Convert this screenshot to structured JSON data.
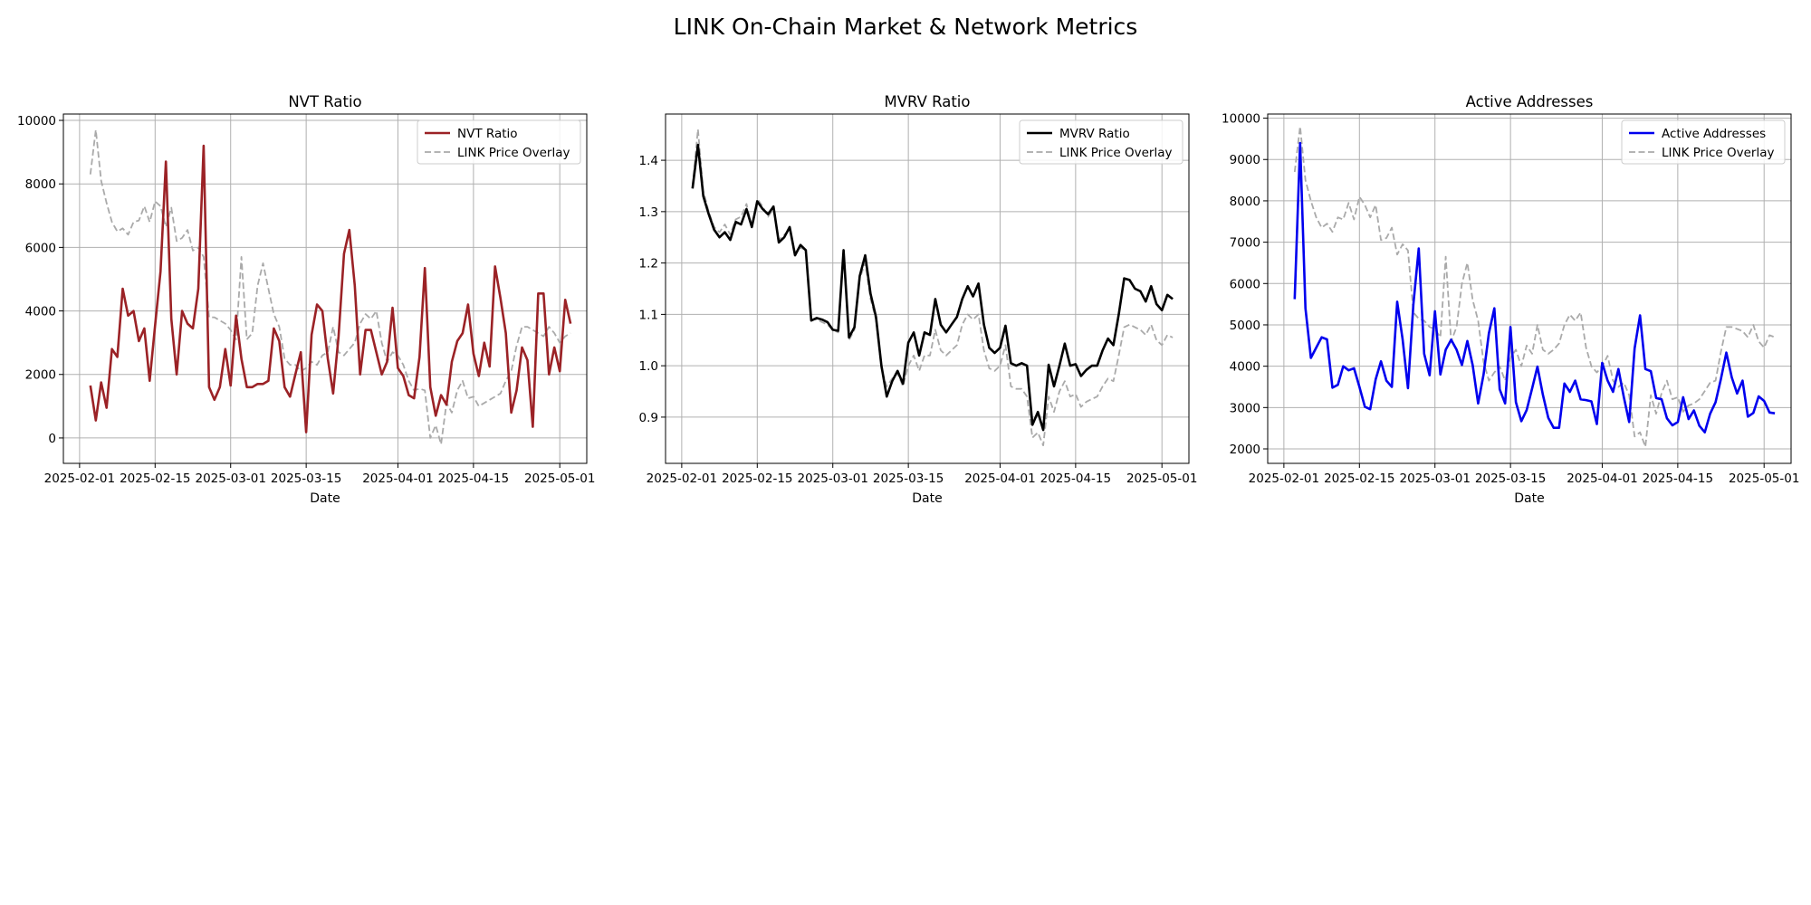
{
  "figure_title": "LINK On-Chain Market & Network Metrics",
  "chart_data": [
    {
      "type": "line",
      "title": "NVT Ratio",
      "xlabel": "Date",
      "ylabel": "",
      "x_start": "2025-02-03",
      "x_step_days": 1,
      "xlim": [
        "2025-01-29",
        "2025-05-06"
      ],
      "xticks": [
        "2025-02-01",
        "2025-02-15",
        "2025-03-01",
        "2025-03-15",
        "2025-04-01",
        "2025-04-15",
        "2025-05-01"
      ],
      "ylim": [
        -800,
        10200
      ],
      "yticks": [
        0,
        2000,
        4000,
        6000,
        8000,
        10000
      ],
      "ytick_labels": [
        "0",
        "2000",
        "4000",
        "6000",
        "8000",
        "10000"
      ],
      "grid": true,
      "legend": "top-right",
      "series": [
        {
          "name": "NVT Ratio",
          "color": "#9b2226",
          "style": "solid",
          "values": [
            1650,
            550,
            1750,
            950,
            2800,
            2550,
            4700,
            3850,
            4000,
            3050,
            3450,
            1800,
            3550,
            5250,
            8700,
            3750,
            2000,
            4000,
            3600,
            3450,
            4700,
            9200,
            1600,
            1200,
            1600,
            2800,
            1650,
            3850,
            2500,
            1600,
            1600,
            1700,
            1700,
            1800,
            3450,
            3050,
            1600,
            1300,
            2000,
            2700,
            180,
            3250,
            4200,
            4000,
            2500,
            1400,
            3200,
            5800,
            6550,
            4800,
            2000,
            3400,
            3400,
            2700,
            2000,
            2400,
            4100,
            2200,
            1950,
            1350,
            1250,
            2550,
            5350,
            1600,
            700,
            1350,
            1050,
            2400,
            3050,
            3300,
            4200,
            2650,
            1950,
            3000,
            2250,
            5400,
            4400,
            3300,
            800,
            1500,
            2850,
            2450,
            350,
            4550,
            4550,
            2000,
            2850,
            2100,
            4350,
            3600
          ]
        },
        {
          "name": "LINK Price Overlay",
          "color": "#aaaaaa",
          "style": "dashed",
          "values": [
            8300,
            9700,
            8100,
            7400,
            6800,
            6500,
            6600,
            6400,
            6800,
            6850,
            7300,
            6800,
            7450,
            7300,
            6650,
            7250,
            6200,
            6300,
            6550,
            5900,
            6000,
            5700,
            3800,
            3800,
            3700,
            3600,
            3400,
            3100,
            5700,
            3100,
            3300,
            4800,
            5500,
            4700,
            3900,
            3500,
            2500,
            2300,
            2300,
            2100,
            2200,
            2400,
            2300,
            2600,
            2700,
            3500,
            2700,
            2600,
            2800,
            3000,
            3600,
            3900,
            3750,
            4000,
            3000,
            2400,
            2700,
            2600,
            2300,
            1800,
            1500,
            1550,
            1500,
            0,
            400,
            -200,
            1100,
            800,
            1500,
            1800,
            1250,
            1300,
            1000,
            1100,
            1200,
            1300,
            1400,
            1800,
            2100,
            2900,
            3500,
            3500,
            3400,
            3300,
            3200,
            3500,
            3300,
            3000,
            3200,
            3300
          ]
        }
      ]
    },
    {
      "type": "line",
      "title": "MVRV Ratio",
      "xlabel": "Date",
      "ylabel": "",
      "x_start": "2025-02-03",
      "x_step_days": 1,
      "xlim": [
        "2025-01-29",
        "2025-05-06"
      ],
      "xticks": [
        "2025-02-01",
        "2025-02-15",
        "2025-03-01",
        "2025-03-15",
        "2025-04-01",
        "2025-04-15",
        "2025-05-01"
      ],
      "ylim": [
        0.81,
        1.49
      ],
      "yticks": [
        0.9,
        1.0,
        1.1,
        1.2,
        1.3,
        1.4
      ],
      "ytick_labels": [
        "0.9",
        "1.0",
        "1.1",
        "1.2",
        "1.3",
        "1.4"
      ],
      "grid": true,
      "legend": "top-right",
      "series": [
        {
          "name": "MVRV Ratio",
          "color": "#000000",
          "style": "solid",
          "values": [
            1.345,
            1.43,
            1.33,
            1.295,
            1.265,
            1.25,
            1.26,
            1.245,
            1.28,
            1.275,
            1.305,
            1.27,
            1.32,
            1.305,
            1.295,
            1.31,
            1.24,
            1.25,
            1.27,
            1.215,
            1.235,
            1.225,
            1.088,
            1.093,
            1.09,
            1.085,
            1.07,
            1.068,
            1.225,
            1.055,
            1.075,
            1.175,
            1.215,
            1.14,
            1.095,
            1.0,
            0.94,
            0.97,
            0.99,
            0.965,
            1.045,
            1.065,
            1.02,
            1.065,
            1.06,
            1.13,
            1.08,
            1.065,
            1.08,
            1.095,
            1.13,
            1.155,
            1.135,
            1.16,
            1.08,
            1.035,
            1.025,
            1.035,
            1.078,
            1.005,
            1.0,
            1.005,
            1.0,
            0.885,
            0.91,
            0.875,
            1.002,
            0.96,
            1.0,
            1.043,
            1.0,
            1.003,
            0.98,
            0.992,
            1.0,
            1.0,
            1.03,
            1.053,
            1.04,
            1.1,
            1.17,
            1.167,
            1.15,
            1.145,
            1.125,
            1.155,
            1.12,
            1.108,
            1.138,
            1.13
          ]
        },
        {
          "name": "LINK Price Overlay",
          "color": "#aaaaaa",
          "style": "dashed",
          "values": [
            1.35,
            1.46,
            1.34,
            1.3,
            1.27,
            1.26,
            1.275,
            1.255,
            1.285,
            1.29,
            1.315,
            1.27,
            1.325,
            1.31,
            1.29,
            1.305,
            1.245,
            1.255,
            1.265,
            1.22,
            1.23,
            1.225,
            1.09,
            1.09,
            1.085,
            1.08,
            1.07,
            1.065,
            1.22,
            1.05,
            1.07,
            1.17,
            1.2,
            1.13,
            1.09,
            0.995,
            0.96,
            0.975,
            0.985,
            0.96,
            1.0,
            1.02,
            0.99,
            1.02,
            1.02,
            1.07,
            1.03,
            1.02,
            1.03,
            1.04,
            1.08,
            1.1,
            1.09,
            1.1,
            1.03,
            0.995,
            0.99,
            1.0,
            1.04,
            0.96,
            0.955,
            0.955,
            0.94,
            0.86,
            0.87,
            0.845,
            0.94,
            0.91,
            0.95,
            0.97,
            0.94,
            0.945,
            0.92,
            0.93,
            0.935,
            0.94,
            0.96,
            0.975,
            0.97,
            1.02,
            1.075,
            1.08,
            1.075,
            1.07,
            1.06,
            1.08,
            1.05,
            1.04,
            1.06,
            1.055
          ]
        }
      ]
    },
    {
      "type": "line",
      "title": "Active Addresses",
      "xlabel": "Date",
      "ylabel": "",
      "x_start": "2025-02-03",
      "x_step_days": 1,
      "xlim": [
        "2025-01-29",
        "2025-05-06"
      ],
      "xticks": [
        "2025-02-01",
        "2025-02-15",
        "2025-03-01",
        "2025-03-15",
        "2025-04-01",
        "2025-04-15",
        "2025-05-01"
      ],
      "ylim": [
        1650,
        10100
      ],
      "yticks": [
        2000,
        3000,
        4000,
        5000,
        6000,
        7000,
        8000,
        9000,
        10000
      ],
      "ytick_labels": [
        "2000",
        "3000",
        "4000",
        "5000",
        "6000",
        "7000",
        "8000",
        "9000",
        "10000"
      ],
      "grid": true,
      "legend": "top-right",
      "series": [
        {
          "name": "Active Addresses",
          "color": "#0000ee",
          "style": "solid",
          "values": [
            5620,
            9400,
            5400,
            4200,
            4450,
            4700,
            4650,
            3480,
            3550,
            4000,
            3900,
            3950,
            3500,
            3020,
            2960,
            3680,
            4120,
            3650,
            3500,
            5560,
            4650,
            3470,
            5500,
            6850,
            4300,
            3780,
            5330,
            3800,
            4400,
            4640,
            4400,
            4030,
            4610,
            4020,
            3100,
            3800,
            4800,
            5400,
            3440,
            3100,
            4950,
            3130,
            2670,
            2940,
            3460,
            3990,
            3310,
            2750,
            2510,
            2510,
            3580,
            3380,
            3650,
            3200,
            3180,
            3150,
            2600,
            4080,
            3650,
            3380,
            3930,
            3250,
            2650,
            4430,
            5230,
            3930,
            3880,
            3230,
            3200,
            2740,
            2570,
            2650,
            3250,
            2720,
            2930,
            2560,
            2400,
            2850,
            3130,
            3690,
            4330,
            3730,
            3340,
            3650,
            2780,
            2870,
            3270,
            3160,
            2880,
            2860
          ]
        },
        {
          "name": "LINK Price Overlay",
          "color": "#aaaaaa",
          "style": "dashed",
          "values": [
            8700,
            9800,
            8500,
            8000,
            7600,
            7350,
            7450,
            7250,
            7600,
            7550,
            7950,
            7550,
            8100,
            7900,
            7600,
            7900,
            7050,
            7100,
            7350,
            6700,
            6950,
            6800,
            5300,
            5150,
            5100,
            4950,
            4900,
            4700,
            6650,
            4600,
            4950,
            6000,
            6500,
            5600,
            5100,
            4100,
            3650,
            3850,
            4000,
            3650,
            4200,
            4400,
            4000,
            4500,
            4300,
            5000,
            4400,
            4300,
            4400,
            4550,
            5000,
            5250,
            5100,
            5300,
            4450,
            4000,
            3850,
            4000,
            4250,
            3650,
            3500,
            3600,
            3300,
            2300,
            2400,
            2050,
            3300,
            2850,
            3350,
            3650,
            3200,
            3250,
            2900,
            3050,
            3100,
            3200,
            3400,
            3600,
            3650,
            4350,
            4950,
            4950,
            4900,
            4850,
            4700,
            5000,
            4600,
            4450,
            4750,
            4700
          ]
        }
      ]
    }
  ]
}
